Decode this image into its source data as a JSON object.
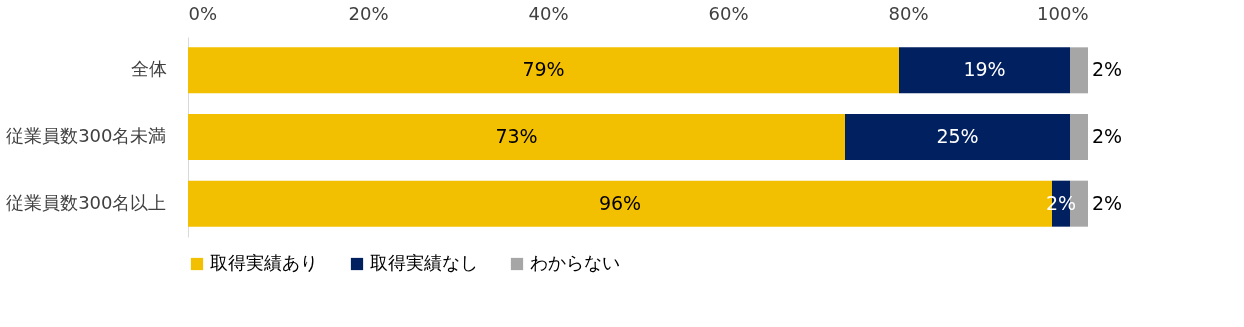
{
  "chart_data": {
    "type": "bar",
    "orientation": "horizontal",
    "stacked": true,
    "categories": [
      "全体",
      "従業員数300名未満",
      "従業員数300名以上"
    ],
    "series": [
      {
        "name": "取得実績あり",
        "color": "#f2c000",
        "values": [
          79,
          73,
          96
        ],
        "value_labels": [
          "79%",
          "73%",
          "96%"
        ]
      },
      {
        "name": "取得実績なし",
        "color": "#002060",
        "values": [
          19,
          25,
          2
        ],
        "value_labels": [
          "19%",
          "25%",
          "2%"
        ]
      },
      {
        "name": "わからない",
        "color": "#a6a6a6",
        "values": [
          2,
          2,
          2
        ],
        "value_labels": [
          "2%",
          "2%",
          "2%"
        ]
      }
    ],
    "xlim": [
      0,
      100
    ],
    "xticks": [
      {
        "value": 0,
        "label": "0%"
      },
      {
        "value": 20,
        "label": "20%"
      },
      {
        "value": 40,
        "label": "40%"
      },
      {
        "value": 60,
        "label": "60%"
      },
      {
        "value": 80,
        "label": "80%"
      },
      {
        "value": 100,
        "label": "100%"
      }
    ],
    "grid": false,
    "legend": "bottom"
  }
}
